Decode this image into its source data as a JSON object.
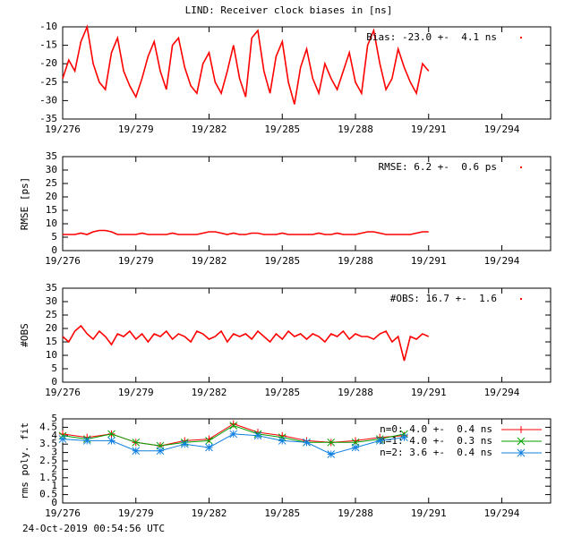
{
  "chart_data": [
    {
      "type": "line",
      "title": "LIND: Receiver clock biases in [ns]",
      "x": [
        276,
        276.25,
        276.5,
        276.75,
        277,
        277.25,
        277.5,
        277.75,
        278,
        278.25,
        278.5,
        278.75,
        279,
        279.25,
        279.5,
        279.75,
        280,
        280.25,
        280.5,
        280.75,
        281,
        281.25,
        281.5,
        281.75,
        282,
        282.25,
        282.5,
        282.75,
        283,
        283.25,
        283.5,
        283.75,
        284,
        284.25,
        284.5,
        284.75,
        285,
        285.25,
        285.5,
        285.75,
        286,
        286.25,
        286.5,
        286.75,
        287,
        287.25,
        287.5,
        287.75,
        288,
        288.25,
        288.5,
        288.75,
        289,
        289.25,
        289.5,
        289.75,
        290,
        290.25,
        290.5,
        290.75,
        291
      ],
      "series": [
        {
          "name": "Bias: -23.0 +-  4.1 ns",
          "color": "#ff0000",
          "values": [
            -24,
            -19,
            -22,
            -14,
            -10,
            -20,
            -25,
            -27,
            -17,
            -13,
            -22,
            -26,
            -29,
            -24,
            -18,
            -14,
            -22,
            -27,
            -15,
            -13,
            -21,
            -26,
            -28,
            -20,
            -17,
            -25,
            -28,
            -22,
            -15,
            -24,
            -29,
            -13,
            -11,
            -22,
            -28,
            -18,
            -14,
            -25,
            -31,
            -21,
            -16,
            -24,
            -28,
            -20,
            -24,
            -27,
            -22,
            -17,
            -25,
            -28,
            -15,
            -11,
            -20,
            -27,
            -24,
            -16,
            -21,
            -25,
            -28,
            -20,
            -22
          ]
        }
      ],
      "xlim": [
        276,
        296
      ],
      "xticks": [
        {
          "value": 276,
          "label": "19/276"
        },
        {
          "value": 279,
          "label": "19/279"
        },
        {
          "value": 282,
          "label": "19/282"
        },
        {
          "value": 285,
          "label": "19/285"
        },
        {
          "value": 288,
          "label": "19/288"
        },
        {
          "value": 291,
          "label": "19/291"
        },
        {
          "value": 294,
          "label": "19/294"
        }
      ],
      "ylim": [
        -35,
        -10
      ],
      "yticks": [
        -35,
        -30,
        -25,
        -20,
        -15,
        -10
      ]
    },
    {
      "type": "line",
      "ylabel": "RMSE [ps]",
      "x": [
        276,
        276.25,
        276.5,
        276.75,
        277,
        277.25,
        277.5,
        277.75,
        278,
        278.25,
        278.5,
        278.75,
        279,
        279.25,
        279.5,
        279.75,
        280,
        280.25,
        280.5,
        280.75,
        281,
        281.25,
        281.5,
        281.75,
        282,
        282.25,
        282.5,
        282.75,
        283,
        283.25,
        283.5,
        283.75,
        284,
        284.25,
        284.5,
        284.75,
        285,
        285.25,
        285.5,
        285.75,
        286,
        286.25,
        286.5,
        286.75,
        287,
        287.25,
        287.5,
        287.75,
        288,
        288.25,
        288.5,
        288.75,
        289,
        289.25,
        289.5,
        289.75,
        290,
        290.25,
        290.5,
        290.75,
        291
      ],
      "series": [
        {
          "name": "RMSE: 6.2 +-  0.6 ps",
          "color": "#ff0000",
          "values": [
            6,
            6,
            6,
            6.5,
            6,
            7,
            7.5,
            7.5,
            7,
            6,
            6,
            6,
            6,
            6.5,
            6,
            6,
            6,
            6,
            6.5,
            6,
            6,
            6,
            6,
            6.5,
            7,
            7,
            6.5,
            6,
            6.5,
            6,
            6,
            6.5,
            6.5,
            6,
            6,
            6,
            6.5,
            6,
            6,
            6,
            6,
            6,
            6.5,
            6,
            6,
            6.5,
            6,
            6,
            6,
            6.5,
            7,
            7,
            6.5,
            6,
            6,
            6,
            6,
            6,
            6.5,
            7,
            7
          ]
        }
      ],
      "xlim": [
        276,
        296
      ],
      "xticks": [
        {
          "value": 276,
          "label": "19/276"
        },
        {
          "value": 279,
          "label": "19/279"
        },
        {
          "value": 282,
          "label": "19/282"
        },
        {
          "value": 285,
          "label": "19/285"
        },
        {
          "value": 288,
          "label": "19/288"
        },
        {
          "value": 291,
          "label": "19/291"
        },
        {
          "value": 294,
          "label": "19/294"
        }
      ],
      "ylim": [
        0,
        35
      ],
      "yticks": [
        0,
        5,
        10,
        15,
        20,
        25,
        30,
        35
      ]
    },
    {
      "type": "line",
      "ylabel": "#OBS",
      "x": [
        276,
        276.25,
        276.5,
        276.75,
        277,
        277.25,
        277.5,
        277.75,
        278,
        278.25,
        278.5,
        278.75,
        279,
        279.25,
        279.5,
        279.75,
        280,
        280.25,
        280.5,
        280.75,
        281,
        281.25,
        281.5,
        281.75,
        282,
        282.25,
        282.5,
        282.75,
        283,
        283.25,
        283.5,
        283.75,
        284,
        284.25,
        284.5,
        284.75,
        285,
        285.25,
        285.5,
        285.75,
        286,
        286.25,
        286.5,
        286.75,
        287,
        287.25,
        287.5,
        287.75,
        288,
        288.25,
        288.5,
        288.75,
        289,
        289.25,
        289.5,
        289.75,
        290,
        290.25,
        290.5,
        290.75,
        291
      ],
      "series": [
        {
          "name": "#OBS: 16.7 +-  1.6",
          "color": "#ff0000",
          "values": [
            17,
            15,
            19,
            21,
            18,
            16,
            19,
            17,
            14,
            18,
            17,
            19,
            16,
            18,
            15,
            18,
            17,
            19,
            16,
            18,
            17,
            15,
            19,
            18,
            16,
            17,
            19,
            15,
            18,
            17,
            18,
            16,
            19,
            17,
            15,
            18,
            16,
            19,
            17,
            18,
            16,
            18,
            17,
            15,
            18,
            17,
            19,
            16,
            18,
            17,
            17,
            16,
            18,
            19,
            15,
            17,
            8,
            17,
            16,
            18,
            17
          ]
        }
      ],
      "xlim": [
        276,
        296
      ],
      "xticks": [
        {
          "value": 276,
          "label": "19/276"
        },
        {
          "value": 279,
          "label": "19/279"
        },
        {
          "value": 282,
          "label": "19/282"
        },
        {
          "value": 285,
          "label": "19/285"
        },
        {
          "value": 288,
          "label": "19/288"
        },
        {
          "value": 291,
          "label": "19/291"
        },
        {
          "value": 294,
          "label": "19/294"
        }
      ],
      "ylim": [
        0,
        35
      ],
      "yticks": [
        0,
        5,
        10,
        15,
        20,
        25,
        30,
        35
      ]
    },
    {
      "type": "line",
      "ylabel": "rms poly. fit",
      "x": [
        276,
        277,
        278,
        279,
        280,
        281,
        282,
        283,
        284,
        285,
        286,
        287,
        288,
        289,
        290
      ],
      "series": [
        {
          "name": "n=0: 4.0 +-  0.4 ns",
          "color": "#ff0000",
          "marker": "plus",
          "values": [
            4.1,
            3.9,
            4.1,
            3.6,
            3.4,
            3.7,
            3.8,
            4.7,
            4.2,
            4.0,
            3.7,
            3.6,
            3.7,
            3.9,
            4.0
          ]
        },
        {
          "name": "n=1: 4.0 +-  0.3 ns",
          "color": "#00a000",
          "marker": "cross",
          "values": [
            4.0,
            3.8,
            4.1,
            3.6,
            3.4,
            3.6,
            3.7,
            4.6,
            4.1,
            3.9,
            3.6,
            3.6,
            3.6,
            3.8,
            4.1
          ]
        },
        {
          "name": "n=2: 3.6 +-  0.4 ns",
          "color": "#1080e0",
          "marker": "star",
          "values": [
            3.8,
            3.7,
            3.7,
            3.1,
            3.1,
            3.5,
            3.3,
            4.1,
            4.0,
            3.7,
            3.6,
            2.9,
            3.3,
            3.7,
            3.9
          ]
        }
      ],
      "xlim": [
        276,
        296
      ],
      "xticks": [
        {
          "value": 276,
          "label": "19/276"
        },
        {
          "value": 279,
          "label": "19/279"
        },
        {
          "value": 282,
          "label": "19/282"
        },
        {
          "value": 285,
          "label": "19/285"
        },
        {
          "value": 288,
          "label": "19/288"
        },
        {
          "value": 291,
          "label": "19/291"
        },
        {
          "value": 294,
          "label": "19/294"
        }
      ],
      "ylim": [
        0,
        5
      ],
      "yticks": [
        0,
        0.5,
        1,
        1.5,
        2,
        2.5,
        3,
        3.5,
        4,
        4.5,
        5
      ]
    }
  ],
  "footer": "24-Oct-2019 00:54:56 UTC"
}
